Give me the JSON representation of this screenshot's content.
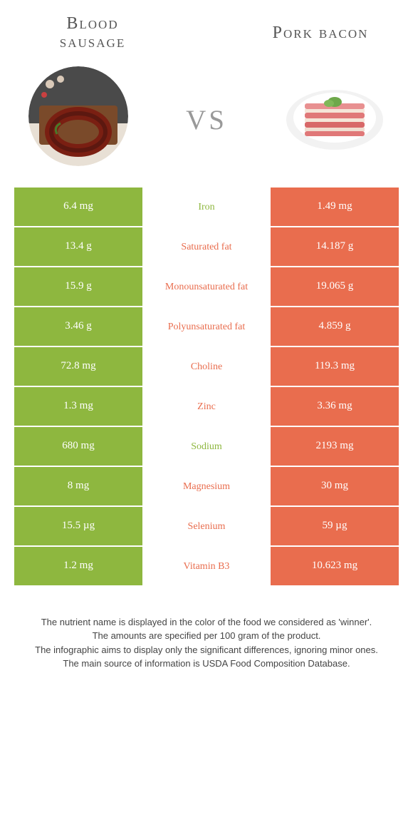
{
  "colors": {
    "left": "#8eb73f",
    "right": "#e96d4e",
    "title": "#666666",
    "vs": "#aaaaaa",
    "footnote": "#444444"
  },
  "header": {
    "left_title_line1": "Blood",
    "left_title_line2": "sausage",
    "right_title": "Pork bacon",
    "vs": "vs"
  },
  "rows": [
    {
      "left": "6.4 mg",
      "label": "Iron",
      "right": "1.49 mg",
      "winner": "left"
    },
    {
      "left": "13.4 g",
      "label": "Saturated fat",
      "right": "14.187 g",
      "winner": "right"
    },
    {
      "left": "15.9 g",
      "label": "Monounsaturated fat",
      "right": "19.065 g",
      "winner": "right"
    },
    {
      "left": "3.46 g",
      "label": "Polyunsaturated fat",
      "right": "4.859 g",
      "winner": "right"
    },
    {
      "left": "72.8 mg",
      "label": "Choline",
      "right": "119.3 mg",
      "winner": "right"
    },
    {
      "left": "1.3 mg",
      "label": "Zinc",
      "right": "3.36 mg",
      "winner": "right"
    },
    {
      "left": "680 mg",
      "label": "Sodium",
      "right": "2193 mg",
      "winner": "left"
    },
    {
      "left": "8 mg",
      "label": "Magnesium",
      "right": "30 mg",
      "winner": "right"
    },
    {
      "left": "15.5 µg",
      "label": "Selenium",
      "right": "59 µg",
      "winner": "right"
    },
    {
      "left": "1.2 mg",
      "label": "Vitamin B3",
      "right": "10.623 mg",
      "winner": "right"
    }
  ],
  "footnotes": [
    "The nutrient name is displayed in the color of the food we considered as 'winner'.",
    "The amounts are specified per 100 gram of the product.",
    "The infographic aims to display only the significant differences, ignoring minor ones.",
    "The main source of information is USDA Food Composition Database."
  ]
}
